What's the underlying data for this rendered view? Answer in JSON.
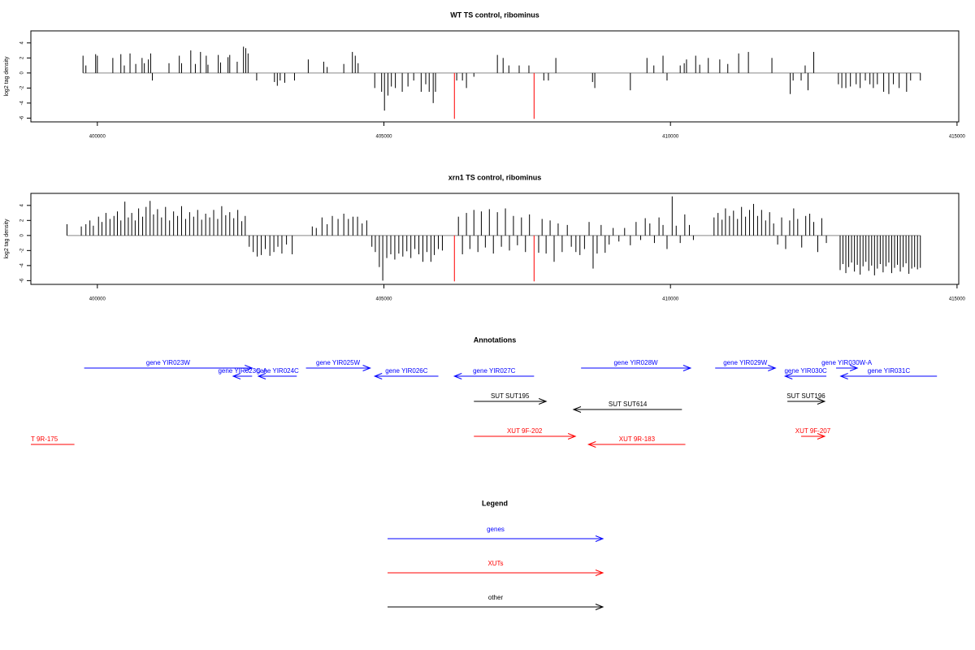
{
  "chart_data": [
    {
      "type": "spike",
      "title": "WT TS control, ribominus",
      "ylabel": "log2 tag density",
      "xlim": [
        398840,
        415030
      ],
      "ylim": [
        -6.5,
        5.6
      ],
      "xticks": [
        400000,
        405000,
        410000,
        415000
      ],
      "yticks": [
        -6,
        -4,
        -2,
        0,
        2,
        4
      ],
      "series": [
        {
          "color": "#000000",
          "x": [
            399750,
            399800,
            399970,
            400000,
            400270,
            400410,
            400470,
            400570,
            400670,
            400780,
            400820,
            400890,
            400930,
            400960,
            401250,
            401430,
            401470,
            401630,
            401710,
            401800,
            401900,
            401930,
            402110,
            402150,
            402280,
            402310,
            402440,
            402550,
            402590,
            402630,
            402780,
            403090,
            403140,
            403190,
            403270,
            403440,
            403680,
            403950,
            404010,
            404300,
            404450,
            404500,
            404550,
            404840,
            404960,
            405010,
            405070,
            405130,
            405200,
            405320,
            405420,
            405520,
            405650,
            405730,
            405790,
            405860,
            405900,
            406270,
            406370,
            406440,
            406570,
            406980,
            407080,
            407180,
            407360,
            407530,
            407790,
            407870,
            408000,
            408640,
            408680,
            409300,
            409590,
            409710,
            409870,
            409940,
            410170,
            410240,
            410280,
            410440,
            410510,
            410660,
            410860,
            411000,
            411190,
            411360,
            411770,
            412090,
            412140,
            412280,
            412350,
            412400,
            412500,
            412930,
            412990,
            413060,
            413140,
            413240,
            413310,
            413400,
            413480,
            413540,
            413610,
            413720,
            413810,
            413890,
            413990,
            414120,
            414190,
            414360
          ],
          "values": [
            2.3,
            1,
            2.5,
            2.3,
            2,
            2.5,
            1,
            2.6,
            1.2,
            2,
            1.3,
            1.8,
            2.6,
            -1,
            1.3,
            2.3,
            1.3,
            3,
            1.2,
            2.8,
            2.3,
            1.1,
            2.4,
            1.4,
            2.1,
            2.4,
            1.5,
            3.5,
            3.3,
            2.6,
            -1,
            -1.2,
            -1.7,
            -1,
            -1.3,
            -1,
            1.8,
            1.5,
            0.8,
            1.2,
            2.8,
            2.3,
            1.3,
            -2,
            -2.5,
            -5,
            -3,
            -1.8,
            -2,
            -2.5,
            -1.8,
            -1,
            -2.5,
            -1.5,
            -2.5,
            -4,
            -2.5,
            -1,
            -1,
            -2,
            -0.5,
            2.4,
            2,
            1,
            1,
            1,
            -1,
            -1,
            2,
            -1.2,
            -2,
            -2.3,
            2,
            1,
            2.3,
            -1,
            1,
            1.3,
            1.8,
            2.3,
            1.1,
            2,
            1.8,
            1.2,
            2.6,
            2.8,
            2,
            -2.8,
            -1,
            -1,
            1,
            -2.3,
            2.8,
            -1.5,
            -2,
            -2,
            -1.8,
            -1.5,
            -2,
            -1,
            -1.5,
            -2,
            -1.5,
            -2.5,
            -2.8,
            -1.5,
            -2,
            -2.5,
            -1,
            -1
          ]
        },
        {
          "color": "#ff0000",
          "x": [
            406230,
            407620
          ],
          "values": [
            -6.1,
            -6.1
          ]
        }
      ]
    },
    {
      "type": "spike",
      "title": "xrn1 TS control, ribominus",
      "ylabel": "log2 tag density",
      "xlim": [
        398840,
        415030
      ],
      "ylim": [
        -6.5,
        5.6
      ],
      "xticks": [
        400000,
        405000,
        410000,
        415000
      ],
      "yticks": [
        -6,
        -4,
        -2,
        0,
        2,
        4
      ],
      "series": [
        {
          "color": "#000000",
          "x": [
            399470,
            399720,
            399800,
            399870,
            399930,
            400020,
            400080,
            400150,
            400220,
            400290,
            400350,
            400410,
            400480,
            400540,
            400600,
            400660,
            400720,
            400790,
            400850,
            400920,
            400980,
            401050,
            401120,
            401190,
            401260,
            401330,
            401400,
            401470,
            401540,
            401610,
            401680,
            401750,
            401820,
            401890,
            401960,
            402030,
            402100,
            402170,
            402240,
            402310,
            402380,
            402450,
            402520,
            402580,
            402650,
            402720,
            402790,
            402860,
            402930,
            403010,
            403080,
            403150,
            403220,
            403300,
            403400,
            403750,
            403820,
            403920,
            404010,
            404100,
            404200,
            404300,
            404380,
            404460,
            404540,
            404620,
            404700,
            404790,
            404850,
            404920,
            404980,
            405050,
            405120,
            405190,
            405260,
            405330,
            405400,
            405470,
            405540,
            405610,
            405680,
            405750,
            405820,
            405880,
            405950,
            406020,
            406300,
            406370,
            406440,
            406500,
            406570,
            406640,
            406700,
            406770,
            406840,
            406910,
            406980,
            407050,
            407120,
            407190,
            407260,
            407330,
            407400,
            407470,
            407540,
            407700,
            407760,
            407830,
            407900,
            407970,
            408040,
            408110,
            408200,
            408270,
            408350,
            408420,
            408500,
            408580,
            408650,
            408720,
            408790,
            408860,
            408930,
            409000,
            409100,
            409200,
            409300,
            409400,
            409480,
            409560,
            409640,
            409720,
            409800,
            409870,
            409940,
            410030,
            410100,
            410170,
            410250,
            410330,
            410400,
            410760,
            410830,
            410900,
            410960,
            411030,
            411100,
            411170,
            411240,
            411310,
            411380,
            411450,
            411520,
            411590,
            411660,
            411730,
            411800,
            411870,
            411940,
            412010,
            412080,
            412150,
            412220,
            412290,
            412360,
            412430,
            412500,
            412570,
            412640,
            412720,
            412960,
            413010,
            413060,
            413110,
            413160,
            413210,
            413260,
            413310,
            413360,
            413410,
            413460,
            413510,
            413560,
            413610,
            413660,
            413710,
            413760,
            413810,
            413860,
            413910,
            413960,
            414010,
            414060,
            414110,
            414160,
            414210,
            414260,
            414310,
            414360
          ],
          "values": [
            1.5,
            1.2,
            1.5,
            2,
            1.3,
            2.5,
            1.8,
            3,
            2.2,
            2.6,
            3.2,
            2,
            4.5,
            2.4,
            3,
            2,
            3.6,
            2.5,
            3.8,
            4.6,
            2.8,
            3.5,
            2.4,
            3.8,
            2,
            3.2,
            2.6,
            3.9,
            2.2,
            3.1,
            2.5,
            3.4,
            2.1,
            2.9,
            2.4,
            3.4,
            2.2,
            3.9,
            2.7,
            3.1,
            2.3,
            3.4,
            1.9,
            2.6,
            -1.5,
            -2.2,
            -2.8,
            -2.6,
            -1.8,
            -2.7,
            -2.2,
            -1.5,
            -2.4,
            -1.2,
            -2.5,
            1.2,
            1,
            2.4,
            1.5,
            2.6,
            2.2,
            2.9,
            2.2,
            2.5,
            2.5,
            1.6,
            2,
            -1.5,
            -2.2,
            -4.2,
            -6,
            -3,
            -2.5,
            -3.2,
            -2.4,
            -2.8,
            -2.1,
            -3,
            -1.8,
            -2.5,
            -3.5,
            -2.2,
            -3.5,
            -2.6,
            -1.8,
            -2,
            2.5,
            -2.5,
            3,
            -1.8,
            3.4,
            -2.2,
            3.2,
            -1.6,
            3.5,
            -2.4,
            3.1,
            -1.5,
            3.6,
            -2,
            2.6,
            -1.3,
            2.4,
            -2.2,
            2.8,
            -2.3,
            2.2,
            -2.4,
            2,
            -3.5,
            1.6,
            -2.2,
            1.4,
            -1.5,
            -2.2,
            -2.6,
            -1.8,
            1.8,
            -4.4,
            -2.4,
            1.4,
            -2.3,
            -1.2,
            1,
            -0.8,
            1,
            -1.3,
            1.8,
            -0.6,
            2.3,
            1.6,
            -1,
            2.4,
            1.4,
            -1.8,
            5.2,
            1.3,
            -1,
            2.8,
            1.4,
            -0.6,
            2.4,
            3,
            2.1,
            3.6,
            2.6,
            3.3,
            2.2,
            3.8,
            2.5,
            3.4,
            4.2,
            2.6,
            3.4,
            2,
            3.1,
            1.6,
            -1.2,
            2.4,
            -1.8,
            2,
            3.6,
            2.2,
            -1.6,
            2.6,
            2.9,
            1.8,
            -2.2,
            2.3,
            -1,
            -4.6,
            -3.8,
            -5,
            -4.2,
            -3.6,
            -4.8,
            -3.9,
            -5.2,
            -4.1,
            -3.5,
            -4.7,
            -4,
            -5.3,
            -4.4,
            -3.8,
            -4.9,
            -4.1,
            -3.6,
            -5,
            -4.3,
            -3.9,
            -4.8,
            -4.2,
            -3.7,
            -5.1,
            -4.4,
            -4.2,
            -4.5,
            -4.3
          ]
        },
        {
          "color": "#ff0000",
          "x": [
            406230,
            407620
          ],
          "values": [
            -6.1,
            -6.1
          ]
        }
      ]
    }
  ],
  "annotations": {
    "title": "Annotations",
    "genes": {
      "color": "#0000ff",
      "features": [
        {
          "label": "gene YIR023W",
          "start": 399770,
          "end": 402700,
          "strand": "+"
        },
        {
          "label": "gene YIR023C-A",
          "start": 402370,
          "end": 402700,
          "strand": "-"
        },
        {
          "label": "gene YIR024C",
          "start": 402810,
          "end": 403480,
          "strand": "-"
        },
        {
          "label": "gene YIR025W",
          "start": 403640,
          "end": 404760,
          "strand": "+"
        },
        {
          "label": "gene YIR026C",
          "start": 404840,
          "end": 405950,
          "strand": "-"
        },
        {
          "label": "gene YIR027C",
          "start": 406230,
          "end": 407620,
          "strand": "-"
        },
        {
          "label": "gene YIR028W",
          "start": 408440,
          "end": 410350,
          "strand": "+"
        },
        {
          "label": "gene YIR029W",
          "start": 410780,
          "end": 411830,
          "strand": "+"
        },
        {
          "label": "gene YIR030C",
          "start": 412000,
          "end": 412720,
          "strand": "-"
        },
        {
          "label": "gene YIR030W-A",
          "start": 412890,
          "end": 413260,
          "strand": "+"
        },
        {
          "label": "gene YIR031C",
          "start": 412970,
          "end": 414650,
          "strand": "-"
        }
      ]
    },
    "other": {
      "color": "#000000",
      "features": [
        {
          "label": "SUT SUT195",
          "start": 406570,
          "end": 407830,
          "strand": "+"
        },
        {
          "label": "SUT SUT614",
          "start": 408310,
          "end": 410200,
          "strand": "-"
        },
        {
          "label": "SUT SUT196",
          "start": 412040,
          "end": 412690,
          "strand": "+"
        }
      ]
    },
    "xuts": {
      "color": "#ff0000",
      "features": [
        {
          "label": "XUT 9F-202",
          "start": 406570,
          "end": 408340,
          "strand": "+"
        },
        {
          "label": "XUT 9R-183",
          "start": 408570,
          "end": 410260,
          "strand": "-"
        },
        {
          "label": "XUT 9F-207",
          "start": 412280,
          "end": 412690,
          "strand": "+"
        },
        {
          "label": "T 9R-175",
          "start": 398840,
          "end": 399600
        }
      ]
    }
  },
  "legend": {
    "title": "Legend",
    "items": [
      {
        "label": "genes",
        "color": "#0000ff"
      },
      {
        "label": "XUTs",
        "color": "#ff0000"
      },
      {
        "label": "other",
        "color": "#000000"
      }
    ]
  }
}
